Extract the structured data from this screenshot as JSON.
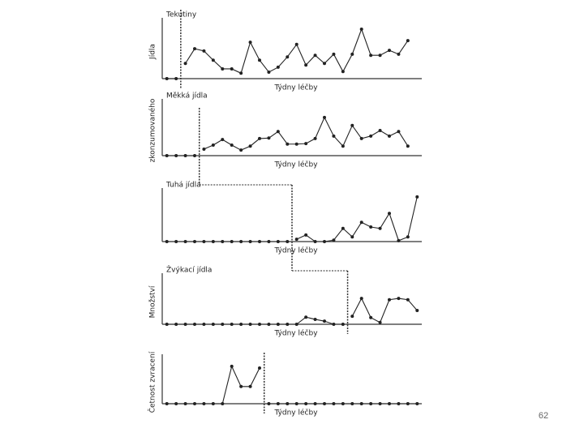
{
  "chart_data": [
    {
      "type": "line",
      "title": "Tekutiny",
      "y_label": "Jídla",
      "x_label": "Týdny léčby",
      "x": [
        1,
        2,
        3,
        4,
        5,
        6,
        7,
        8,
        9,
        10,
        11,
        12,
        13,
        14,
        15,
        16,
        17,
        18,
        19,
        20,
        21,
        22,
        23,
        24,
        25,
        26,
        27
      ],
      "values": [
        0,
        0,
        2.8,
        5.5,
        5.1,
        3.4,
        1.8,
        1.8,
        1,
        6.7,
        3.4,
        1.2,
        2.1,
        4,
        6.3,
        2.5,
        4.3,
        2.8,
        4.5,
        1.3,
        4.5,
        9.1,
        4.3,
        4.3,
        5.2,
        4.5,
        7
      ],
      "xlim": [
        0.5,
        28.5
      ],
      "ylim": [
        0,
        10
      ],
      "phase_change": 2.5,
      "color": "#222222"
    },
    {
      "type": "line",
      "title": "Měkká jídla",
      "y_label": "zkonzumovaného",
      "x_label": "Týdny léčby",
      "x": [
        1,
        2,
        3,
        4,
        5,
        6,
        7,
        8,
        9,
        10,
        11,
        12,
        13,
        14,
        15,
        16,
        17,
        18,
        19,
        20,
        21,
        22,
        23,
        24,
        25,
        26,
        27
      ],
      "values": [
        0,
        0,
        0,
        0,
        1.3,
        2.1,
        3.2,
        2.1,
        1.1,
        1.9,
        3.4,
        3.5,
        4.8,
        2.3,
        2.3,
        2.4,
        3.4,
        7.6,
        3.9,
        1.9,
        6,
        3.4,
        3.9,
        5,
        3.9,
        4.8,
        1.9
      ],
      "xlim": [
        0.5,
        28.5
      ],
      "ylim": [
        0,
        10
      ],
      "phase_change": 4.5,
      "color": "#222222"
    },
    {
      "type": "line",
      "title": "Tuhá jídla",
      "x_label": "Týdny léčby",
      "x": [
        1,
        2,
        3,
        4,
        5,
        6,
        7,
        8,
        9,
        10,
        11,
        12,
        13,
        14,
        15,
        16,
        17,
        18,
        19,
        20,
        21,
        22,
        23,
        24,
        25,
        26,
        27,
        28
      ],
      "values": [
        0,
        0,
        0,
        0,
        0,
        0,
        0,
        0,
        0,
        0,
        0,
        0,
        0,
        0,
        0.5,
        1.4,
        0,
        0,
        0.3,
        2.8,
        1,
        4.1,
        3.1,
        2.8,
        6,
        0.2,
        1,
        9.5
      ],
      "xlim": [
        0.5,
        28.5
      ],
      "ylim": [
        0,
        10
      ],
      "phase_change": 14.5,
      "color": "#222222"
    },
    {
      "type": "line",
      "title": "Žvýkací jídla",
      "y_label": "Množství",
      "x_label": "Týdny léčby",
      "x": [
        1,
        2,
        3,
        4,
        5,
        6,
        7,
        8,
        9,
        10,
        11,
        12,
        13,
        14,
        15,
        16,
        17,
        18,
        19,
        20,
        21,
        22,
        23,
        24,
        25,
        26,
        27,
        28
      ],
      "values": [
        0,
        0,
        0,
        0,
        0,
        0,
        0,
        0,
        0,
        0,
        0,
        0,
        0,
        0,
        0,
        1.6,
        1.1,
        0.7,
        0,
        0,
        1.8,
        5.8,
        1.5,
        0.4,
        5.5,
        5.8,
        5.5,
        3.1
      ],
      "xlim": [
        0.5,
        28.5
      ],
      "ylim": [
        0,
        10
      ],
      "phase_change": 20.5,
      "color": "#222222"
    },
    {
      "type": "line",
      "y_label": "Četnost zvracení",
      "x_label": "Týdny léčby",
      "x": [
        1,
        2,
        3,
        4,
        5,
        6,
        7,
        8,
        9,
        10,
        11,
        12,
        13,
        14,
        15,
        16,
        17,
        18,
        19,
        20,
        21,
        22,
        23,
        24,
        25,
        26,
        27,
        28
      ],
      "values": [
        0,
        0,
        0,
        0,
        0,
        0,
        0,
        8.7,
        4,
        4,
        8.3,
        0,
        0,
        0,
        0,
        0,
        0,
        0,
        0,
        0,
        0,
        0,
        0,
        0,
        0,
        0,
        0,
        0
      ],
      "xlim": [
        0.5,
        28.5
      ],
      "ylim": [
        0,
        10
      ],
      "phase_change": 11.5,
      "color": "#222222"
    }
  ],
  "page_number": "62"
}
